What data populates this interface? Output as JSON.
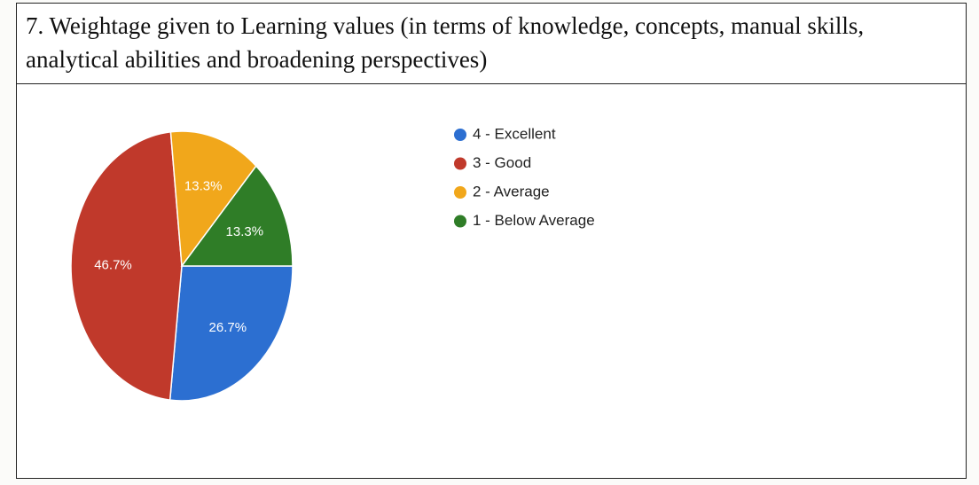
{
  "chart_data": {
    "type": "pie",
    "title": "7. Weightage given to Learning values (in terms of knowledge, concepts, manual skills, analytical abilities and broadening perspectives)",
    "categories": [
      "4 - Excellent",
      "3 - Good",
      "2 - Average",
      "1 - Below Average"
    ],
    "values": [
      26.7,
      46.7,
      13.3,
      13.3
    ],
    "colors": [
      "#2c6fd1",
      "#c0392b",
      "#f1a71b",
      "#2f7d27"
    ],
    "legend": "right"
  }
}
